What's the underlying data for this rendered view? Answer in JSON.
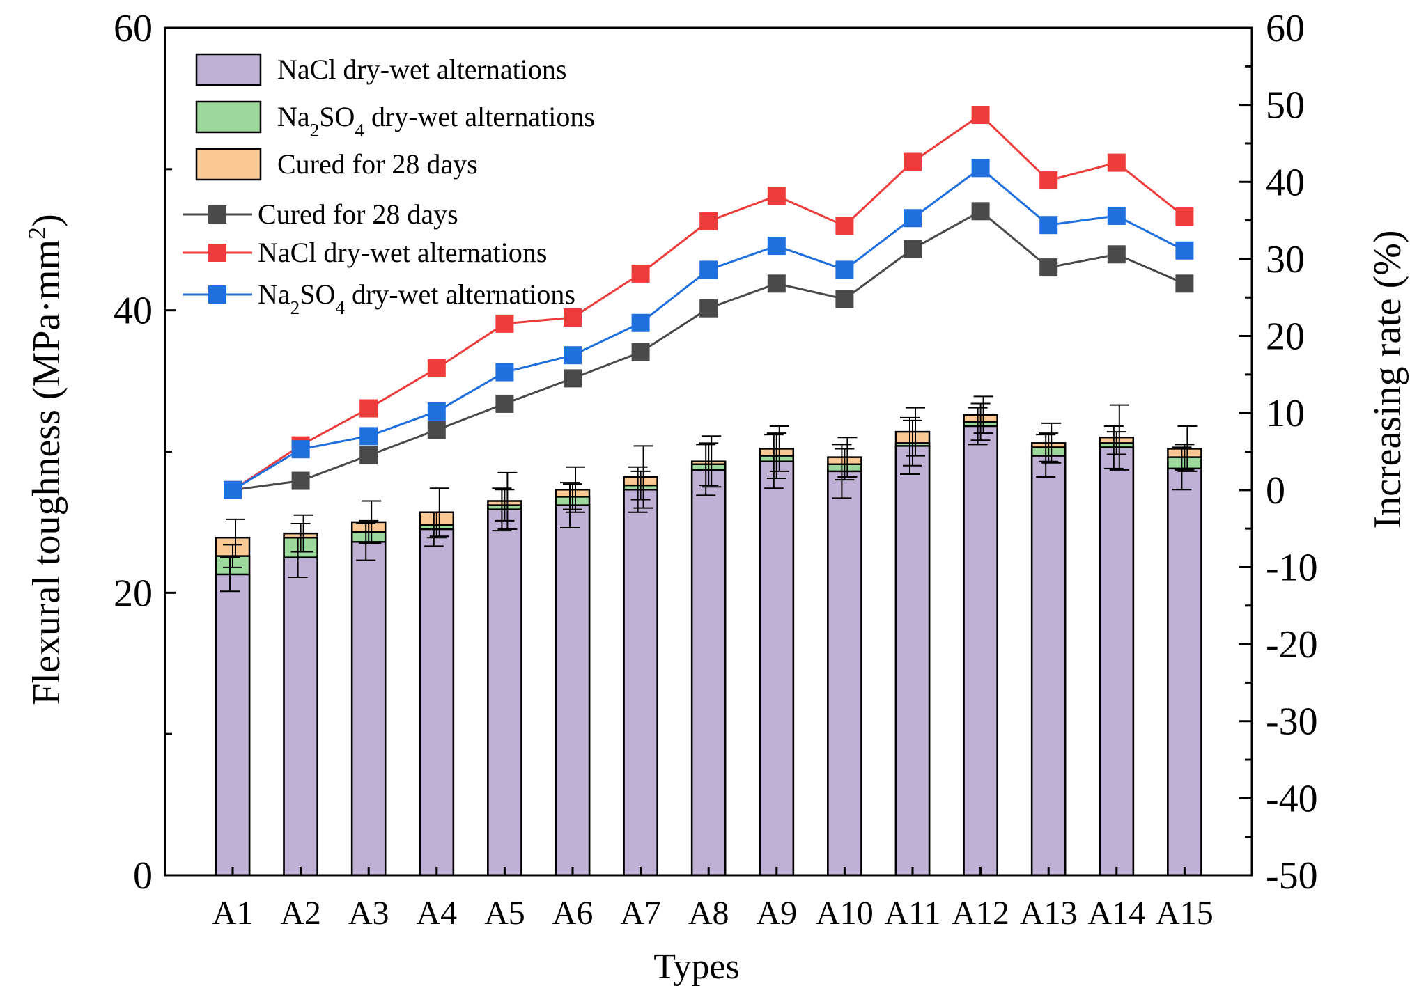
{
  "chart_data": {
    "type": "bar",
    "xlabel": "Types",
    "ylabel_left": "Flexural toughness (MPa·mm",
    "ylabel_left_sup": "2",
    "ylabel_left_close": ")",
    "ylabel_right": "Increasing rate (%)",
    "ylim_left": [
      0,
      60
    ],
    "ylim_right": [
      -50,
      60
    ],
    "left_ticks": [
      0,
      20,
      40,
      60
    ],
    "right_ticks": [
      -50,
      -40,
      -30,
      -20,
      -10,
      0,
      10,
      20,
      30,
      40,
      50,
      60
    ],
    "categories": [
      "A1",
      "A2",
      "A3",
      "A4",
      "A5",
      "A6",
      "A7",
      "A8",
      "A9",
      "A10",
      "A11",
      "A12",
      "A13",
      "A14",
      "A15"
    ],
    "bar_series": [
      {
        "name": "NaCl dry-wet alternations",
        "color": "#bfb0d6",
        "values": [
          21.3,
          22.5,
          23.6,
          24.5,
          25.9,
          26.2,
          27.3,
          28.7,
          29.3,
          28.6,
          30.4,
          31.8,
          29.7,
          30.3,
          28.8
        ],
        "errors": [
          1.2,
          1.4,
          1.3,
          1.2,
          1.5,
          1.6,
          1.6,
          1.8,
          1.9,
          1.9,
          2.0,
          1.3,
          1.5,
          1.5,
          1.5
        ]
      },
      {
        "name": "Na₂SO₄ dry-wet alternations",
        "color": "#9dd89c",
        "values": [
          22.6,
          23.9,
          24.3,
          24.8,
          26.2,
          26.8,
          27.6,
          29.1,
          29.7,
          29.1,
          30.6,
          32.1,
          30.3,
          30.6,
          29.6
        ],
        "errors": [
          0.8,
          1.0,
          0.8,
          0.9,
          1.1,
          0.9,
          1.0,
          1.5,
          1.6,
          1.1,
          1.6,
          1.3,
          1.0,
          0.8,
          0.9
        ]
      },
      {
        "name": "Cured for 28 days",
        "color": "#fcc995",
        "values": [
          23.9,
          24.2,
          25.0,
          25.7,
          26.5,
          27.3,
          28.2,
          29.3,
          30.2,
          29.6,
          31.4,
          32.6,
          30.6,
          31.0,
          30.2
        ],
        "errors": [
          1.3,
          1.3,
          1.5,
          1.7,
          2.0,
          1.6,
          2.2,
          1.8,
          1.6,
          1.4,
          1.7,
          1.3,
          1.4,
          2.3,
          1.6
        ]
      }
    ],
    "line_series": [
      {
        "name": "Cured for 28 days",
        "color": "#4a4a4a",
        "values": [
          0,
          1.2,
          4.5,
          7.8,
          11.2,
          14.5,
          17.9,
          23.6,
          26.8,
          24.8,
          31.3,
          36.2,
          28.9,
          30.6,
          26.8
        ]
      },
      {
        "name": "NaCl dry-wet alternations",
        "color": "#ee3b3b",
        "values": [
          0,
          5.8,
          10.6,
          15.8,
          21.6,
          22.4,
          28.1,
          34.9,
          38.2,
          34.3,
          42.6,
          48.7,
          40.2,
          42.5,
          35.5
        ]
      },
      {
        "name": "Na₂SO₄ dry-wet alternations",
        "color": "#1f6fde",
        "values": [
          0,
          5.3,
          7.0,
          10.2,
          15.3,
          17.5,
          21.7,
          28.6,
          31.7,
          28.6,
          35.3,
          41.8,
          34.4,
          35.6,
          31.1
        ]
      }
    ],
    "legend": {
      "bars": [
        {
          "label": "NaCl dry-wet alternations",
          "color": "#bfb0d6"
        },
        {
          "label_prefix": "Na",
          "sub1": "2",
          "mid": "SO",
          "sub2": "4",
          "label_suffix": " dry-wet alternations",
          "color": "#9dd89c"
        },
        {
          "label": "Cured for 28 days",
          "color": "#fcc995"
        }
      ],
      "lines": [
        {
          "label": "Cured for 28 days",
          "color": "#4a4a4a"
        },
        {
          "label": "NaCl dry-wet alternations",
          "color": "#ee3b3b"
        },
        {
          "label_prefix": "Na",
          "sub1": "2",
          "mid": "SO",
          "sub2": "4",
          "label_suffix": " dry-wet alternations",
          "color": "#1f6fde"
        }
      ]
    }
  }
}
